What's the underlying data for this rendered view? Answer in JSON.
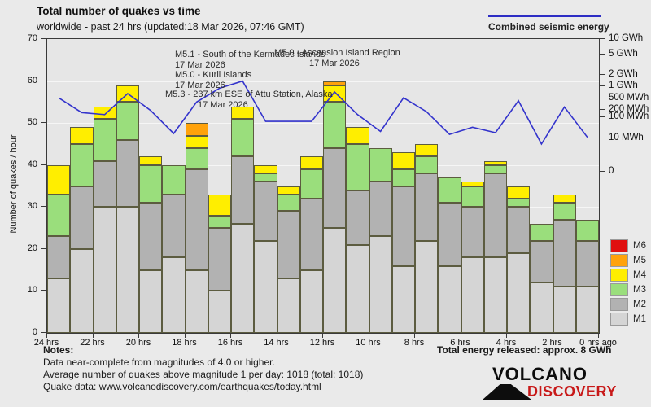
{
  "header": {
    "title": "Total number of quakes vs time",
    "subtitle": "worldwide - past 24 hrs (updated:18 Mar 2026, 07:46 GMT)",
    "energy_legend_label": "Combined seismic energy"
  },
  "chart_data": {
    "type": "bar",
    "stacked": true,
    "title": "Total number of quakes vs time",
    "xlabel": "hours ago",
    "ylabel": "Number of quakes / hour",
    "ylim": [
      0,
      70
    ],
    "y_ticks": [
      0,
      10,
      20,
      30,
      40,
      50,
      60,
      70
    ],
    "gridlines_at": [
      10,
      20,
      30,
      40,
      50,
      60
    ],
    "x_tick_labels": [
      "24 hrs",
      "22 hrs",
      "20 hrs",
      "18 hrs",
      "16 hrs",
      "14 hrs",
      "12 hrs",
      "10 hrs",
      "8 hrs",
      "6 hrs",
      "4 hrs",
      "2 hrs",
      "0 hrs ago"
    ],
    "hours_ago": [
      24,
      23,
      22,
      21,
      20,
      19,
      18,
      17,
      16,
      15,
      14,
      13,
      12,
      11,
      10,
      9,
      8,
      7,
      6,
      5,
      4,
      3,
      2,
      1
    ],
    "series": [
      {
        "name": "M1",
        "color": "#d5d5d5",
        "values": [
          13,
          20,
          30,
          30,
          15,
          18,
          15,
          10,
          26,
          22,
          13,
          15,
          25,
          21,
          23,
          16,
          22,
          16,
          18,
          18,
          19,
          12,
          11,
          11
        ]
      },
      {
        "name": "M2",
        "color": "#b2b2b2",
        "values": [
          10,
          15,
          11,
          16,
          16,
          15,
          24,
          15,
          16,
          14,
          16,
          17,
          19,
          13,
          13,
          19,
          16,
          15,
          12,
          20,
          11,
          10,
          16,
          11
        ]
      },
      {
        "name": "M3",
        "color": "#9ade7c",
        "values": [
          10,
          10,
          10,
          9,
          9,
          7,
          5,
          3,
          9,
          2,
          4,
          7,
          11,
          11,
          8,
          4,
          4,
          6,
          5,
          2,
          2,
          4,
          4,
          5
        ]
      },
      {
        "name": "M4",
        "color": "#ffee00",
        "values": [
          7,
          4,
          3,
          4,
          2,
          0,
          3,
          5,
          3,
          2,
          2,
          3,
          4,
          4,
          0,
          4,
          3,
          0,
          1,
          1,
          3,
          0,
          2,
          0
        ]
      },
      {
        "name": "M5",
        "color": "#ffa20a",
        "values": [
          0,
          0,
          0,
          0,
          0,
          0,
          3,
          0,
          0,
          0,
          0,
          0,
          1,
          0,
          0,
          0,
          0,
          0,
          0,
          0,
          0,
          0,
          0,
          0
        ]
      },
      {
        "name": "M6",
        "color": "#e01010",
        "values": [
          0,
          0,
          0,
          0,
          0,
          0,
          0,
          0,
          0,
          0,
          0,
          0,
          0,
          0,
          0,
          0,
          0,
          0,
          0,
          0,
          0,
          0,
          0,
          0
        ]
      }
    ],
    "bar_totals": [
      40,
      49,
      54,
      59,
      42,
      40,
      50,
      33,
      54,
      40,
      35,
      42,
      60,
      49,
      44,
      43,
      45,
      37,
      36,
      41,
      35,
      26,
      33,
      27
    ],
    "energy_line": {
      "name": "Combined seismic energy",
      "color": "#3333cc",
      "values_on_quakes_scale": [
        56,
        52.5,
        52,
        57,
        53,
        47.5,
        55,
        58.3,
        60,
        50.4,
        50.4,
        50.4,
        57.4,
        52,
        48,
        56,
        52.7,
        47.3,
        49,
        47.7,
        55.3,
        45,
        53.8,
        46.6
      ]
    },
    "right_axis_ticks": [
      {
        "label": "10 GWh",
        "v": 70
      },
      {
        "label": "5 GWh",
        "v": 66.4
      },
      {
        "label": "2 GWh",
        "v": 61.4
      },
      {
        "label": "1 GWh",
        "v": 58.8
      },
      {
        "label": "500 MWh",
        "v": 55.8
      },
      {
        "label": "200 MWh",
        "v": 53.2
      },
      {
        "label": "100 MWh",
        "v": 51.4
      },
      {
        "label": "10 MWh",
        "v": 46.4
      },
      {
        "label": "0",
        "v": 38.4
      }
    ],
    "legend_position": "right",
    "annotations": [
      {
        "text": "M5.1 - South of the Kermadec Islands",
        "date": "17 Mar 2026",
        "x": 215,
        "y": 61,
        "date_dx": 0
      },
      {
        "text": "M5.0 - Kuril Islands",
        "date": "17 Mar 2026",
        "x": 215,
        "y": 86,
        "date_dx": 0
      },
      {
        "text": "M5.3 - 237 km ESE of Attu Station, Alaska",
        "date": "17 Mar 2026",
        "x": 203,
        "y": 110,
        "date_dx": 40
      },
      {
        "text": "M5.0 - Ascension Island Region",
        "date": "17 Mar 2026",
        "x": 337,
        "y": 59,
        "date_dx": 43
      }
    ]
  },
  "legend": {
    "items": [
      {
        "label": "M6",
        "color": "#e01010"
      },
      {
        "label": "M5",
        "color": "#ffa20a"
      },
      {
        "label": "M4",
        "color": "#ffee00"
      },
      {
        "label": "M3",
        "color": "#9ade7c"
      },
      {
        "label": "M2",
        "color": "#b2b2b2"
      },
      {
        "label": "M1",
        "color": "#d5d5d5"
      }
    ]
  },
  "notes": {
    "heading": "Notes:",
    "line1": "Data near-complete from magnitudes of 4.0 or higher.",
    "line2": "Average number of quakes above magnitude 1 per day: 1018 (total: 1018)",
    "line3": "Quake data: www.volcanodiscovery.com/earthquakes/today.html"
  },
  "footer": {
    "total_energy": "Total energy released: approx. 8 GWh"
  },
  "logo": {
    "line1": "VOLCANO",
    "line2": "DISCOVERY"
  }
}
